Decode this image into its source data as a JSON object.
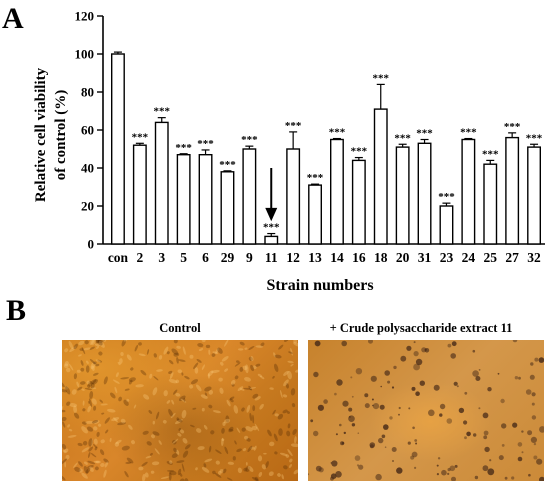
{
  "panels": {
    "a_letter": "A",
    "b_letter": "B"
  },
  "chart_data": {
    "type": "bar",
    "ylabel_line1": "Relative cell viability",
    "ylabel_line2": "of control (%)",
    "xlabel": "Strain numbers",
    "ylim": [
      0,
      120
    ],
    "yticks": [
      0,
      20,
      40,
      60,
      80,
      100,
      120
    ],
    "categories": [
      "con",
      "2",
      "3",
      "5",
      "6",
      "29",
      "9",
      "11",
      "12",
      "13",
      "14",
      "16",
      "18",
      "20",
      "31",
      "23",
      "24",
      "25",
      "27",
      "32"
    ],
    "values": [
      100,
      52,
      64,
      47,
      47,
      38,
      50,
      4,
      50,
      31,
      55,
      44,
      71,
      51,
      53,
      20,
      55,
      42,
      56,
      51
    ],
    "errors": [
      1,
      1,
      2.5,
      0.5,
      2.5,
      0.5,
      1.5,
      1.5,
      9,
      0.5,
      0.5,
      1.5,
      13,
      1.5,
      2,
      1.5,
      0.5,
      2,
      2.5,
      1.5
    ],
    "significance": [
      "",
      "***",
      "***",
      "***",
      "***",
      "***",
      "***",
      "***",
      "***",
      "***",
      "***",
      "***",
      "***",
      "***",
      "***",
      "***",
      "***",
      "***",
      "***",
      "***"
    ],
    "arrow_category": "11",
    "bar_fill": "#ffffff",
    "bar_stroke": "#000000",
    "grid": false
  },
  "photos": {
    "control_label": "Control",
    "treated_label": "+ Crude polysaccharide extract 11"
  }
}
